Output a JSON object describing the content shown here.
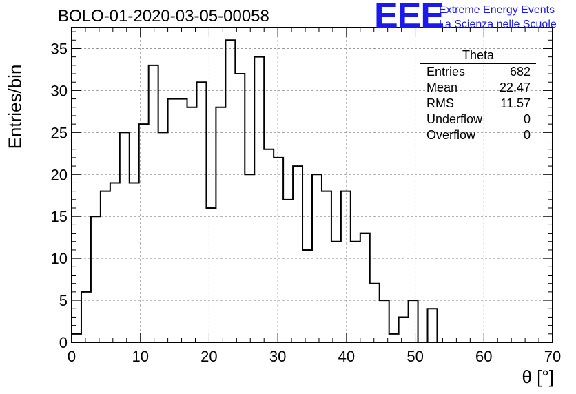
{
  "header": {
    "title": "BOLO-01-2020-03-05-00058",
    "logo_text": "EEE",
    "logo_line1": "Extreme Energy Events",
    "logo_line2": "La Scienza nelle Scuole"
  },
  "stats": {
    "title": "Theta",
    "rows": [
      {
        "label": "Entries",
        "value": "682"
      },
      {
        "label": "Mean",
        "value": "22.47"
      },
      {
        "label": "RMS",
        "value": "11.57"
      },
      {
        "label": "Underflow",
        "value": "0"
      },
      {
        "label": "Overflow",
        "value": "0"
      }
    ]
  },
  "chart_data": {
    "type": "bar",
    "style": "step-histogram",
    "title": "BOLO-01-2020-03-05-00058",
    "xlabel": "θ [°]",
    "ylabel": "Entries/bin",
    "xlim": [
      0,
      70
    ],
    "ylim": [
      0,
      37.5
    ],
    "grid": true,
    "bin_width": 1.4,
    "bin_edges_start": 0,
    "values": [
      1,
      6,
      15,
      18,
      19,
      25,
      19,
      26,
      33,
      25,
      29,
      29,
      28,
      31,
      16,
      28,
      36,
      32,
      20,
      34,
      23,
      22,
      17,
      21,
      11,
      20,
      18,
      12,
      18,
      12,
      13,
      7,
      5,
      1,
      3,
      5,
      0,
      4
    ],
    "x_ticks": [
      0,
      10,
      20,
      30,
      40,
      50,
      60,
      70
    ],
    "y_ticks": [
      0,
      5,
      10,
      15,
      20,
      25,
      30,
      35
    ],
    "colors": {
      "line": "#000000",
      "grid": "#9a9a9a",
      "logo": "#1a1aee"
    }
  }
}
